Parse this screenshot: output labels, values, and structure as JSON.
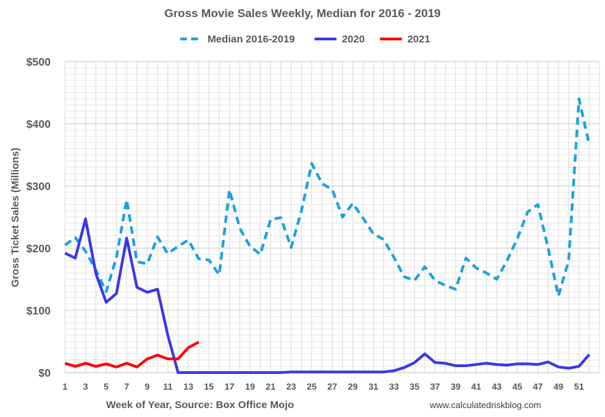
{
  "chart_data": {
    "type": "line",
    "title": "Gross Movie Sales Weekly, Median for 2016 - 2019",
    "xlabel": "Week of Year, Source: Box Office Mojo",
    "ylabel": "Gross Ticket Sales (Millions)",
    "source_note": "www.calculatedriskblog.com",
    "x_ticks": [
      "1",
      "3",
      "5",
      "7",
      "9",
      "11",
      "13",
      "15",
      "17",
      "19",
      "21",
      "23",
      "25",
      "27",
      "29",
      "31",
      "33",
      "35",
      "37",
      "39",
      "41",
      "43",
      "45",
      "47",
      "49",
      "51"
    ],
    "y_ticks": [
      "$0",
      "$100",
      "$200",
      "$300",
      "$400",
      "$500"
    ],
    "y_tick_values": [
      0,
      100,
      200,
      300,
      400,
      500
    ],
    "xlim": [
      1,
      53
    ],
    "ylim": [
      0,
      500
    ],
    "grid": true,
    "legend_position": "top",
    "series": [
      {
        "name": "Median 2016-2019",
        "color": "#1BA1E2",
        "dash": true,
        "values": [
          205,
          217,
          195,
          165,
          130,
          185,
          278,
          178,
          175,
          218,
          191,
          203,
          213,
          183,
          181,
          157,
          294,
          232,
          203,
          190,
          246,
          249,
          201,
          260,
          336,
          304,
          294,
          250,
          272,
          248,
          223,
          214,
          185,
          154,
          148,
          170,
          148,
          140,
          134,
          184,
          168,
          160,
          150,
          180,
          215,
          258,
          270,
          200,
          123,
          180,
          440,
          366
        ]
      },
      {
        "name": "2020",
        "color": "#3B37E6",
        "dash": false,
        "values": [
          192,
          184,
          247,
          159,
          113,
          127,
          216,
          137,
          129,
          134,
          60,
          0,
          0,
          0,
          0,
          0,
          0,
          0,
          0,
          0,
          0,
          0,
          1,
          1,
          1,
          1,
          1,
          1,
          1,
          1,
          1,
          1,
          3,
          8,
          16,
          30,
          16,
          15,
          11,
          11,
          13,
          15,
          13,
          12,
          14,
          14,
          13,
          17,
          9,
          7,
          10,
          29
        ]
      },
      {
        "name": "2021",
        "color": "#FF0000",
        "dash": false,
        "values": [
          15,
          10,
          15,
          10,
          14,
          9,
          15,
          9,
          22,
          28,
          22,
          22,
          40,
          49
        ]
      }
    ]
  }
}
